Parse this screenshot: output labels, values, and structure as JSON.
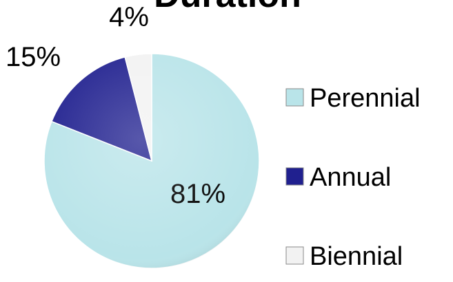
{
  "chart_data": {
    "type": "pie",
    "title": "Duration",
    "categories": [
      "Perennial",
      "Annual",
      "Biennial"
    ],
    "values": [
      81,
      15,
      4
    ],
    "value_labels": [
      "81%",
      "15%",
      "4%"
    ],
    "colors": [
      "#b9e4e9",
      "#20208f",
      "#f2f2f2"
    ],
    "legend": "right"
  }
}
